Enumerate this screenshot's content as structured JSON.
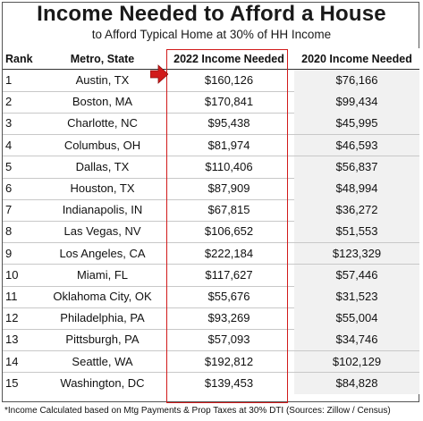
{
  "title": "Income Needed to Afford a House",
  "subtitle": "to Afford Typical Home at 30% of HH Income",
  "table": {
    "headers": {
      "rank": "Rank",
      "metro": "Metro, State",
      "income_2022": "2022 Income Needed",
      "income_2020": "2020 Income Needed"
    },
    "rows": [
      {
        "rank": "1",
        "metro": "Austin, TX",
        "income_2022": "$160,126",
        "income_2020": "$76,166"
      },
      {
        "rank": "2",
        "metro": "Boston, MA",
        "income_2022": "$170,841",
        "income_2020": "$99,434"
      },
      {
        "rank": "3",
        "metro": "Charlotte, NC",
        "income_2022": "$95,438",
        "income_2020": "$45,995"
      },
      {
        "rank": "4",
        "metro": "Columbus, OH",
        "income_2022": "$81,974",
        "income_2020": "$46,593"
      },
      {
        "rank": "5",
        "metro": "Dallas, TX",
        "income_2022": "$110,406",
        "income_2020": "$56,837"
      },
      {
        "rank": "6",
        "metro": "Houston, TX",
        "income_2022": "$87,909",
        "income_2020": "$48,994"
      },
      {
        "rank": "7",
        "metro": "Indianapolis, IN",
        "income_2022": "$67,815",
        "income_2020": "$36,272"
      },
      {
        "rank": "8",
        "metro": "Las Vegas, NV",
        "income_2022": "$106,652",
        "income_2020": "$51,553"
      },
      {
        "rank": "9",
        "metro": "Los Angeles, CA",
        "income_2022": "$222,184",
        "income_2020": "$123,329"
      },
      {
        "rank": "10",
        "metro": "Miami, FL",
        "income_2022": "$117,627",
        "income_2020": "$57,446"
      },
      {
        "rank": "11",
        "metro": "Oklahoma City, OK",
        "income_2022": "$55,676",
        "income_2020": "$31,523"
      },
      {
        "rank": "12",
        "metro": "Philadelphia, PA",
        "income_2022": "$93,269",
        "income_2020": "$55,004"
      },
      {
        "rank": "13",
        "metro": "Pittsburgh, PA",
        "income_2022": "$57,093",
        "income_2020": "$34,746"
      },
      {
        "rank": "14",
        "metro": "Seattle, WA",
        "income_2022": "$192,812",
        "income_2020": "$102,129"
      },
      {
        "rank": "15",
        "metro": "Washington, DC",
        "income_2022": "$139,453",
        "income_2020": "$84,828"
      }
    ]
  },
  "footnote": "*Income Calculated based on Mtg Payments & Prop Taxes at 30% DTI (Sources: Zillow / Census)",
  "colors": {
    "highlight": "#d11a1a",
    "shaded_column": "#f1f1f1",
    "text": "#111111"
  },
  "icons": {
    "pointer": "right-arrow-icon"
  }
}
